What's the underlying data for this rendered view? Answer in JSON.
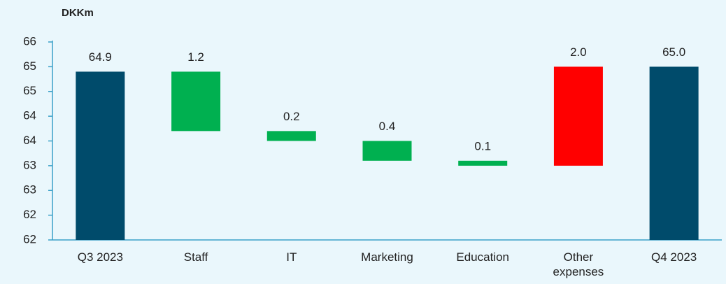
{
  "chart_data": {
    "type": "waterfall",
    "y_axis_label": "DKKm",
    "categories": [
      "Q3 2023",
      "Staff",
      "IT",
      "Marketing",
      "Education",
      "Other expenses",
      "Q4 2023"
    ],
    "values": [
      64.9,
      -1.2,
      -0.2,
      -0.4,
      -0.1,
      2.0,
      65.0
    ],
    "value_labels": [
      "64.9",
      "1.2",
      "0.2",
      "0.4",
      "0.1",
      "2.0",
      "65.0"
    ],
    "colors": [
      "#004b6b",
      "#00b050",
      "#00b050",
      "#00b050",
      "#00b050",
      "#ff0000",
      "#004b6b"
    ],
    "ylim": [
      61.5,
      65.5
    ],
    "yticks": [
      {
        "value": 61.5,
        "label": "62"
      },
      62,
      {
        "value": 62.5,
        "label": "63"
      },
      63,
      {
        "value": 63.5,
        "label": "64"
      },
      64,
      {
        "value": 64.5,
        "label": "65"
      },
      65,
      {
        "value": 65.5,
        "label": "66"
      }
    ],
    "grid": false
  }
}
